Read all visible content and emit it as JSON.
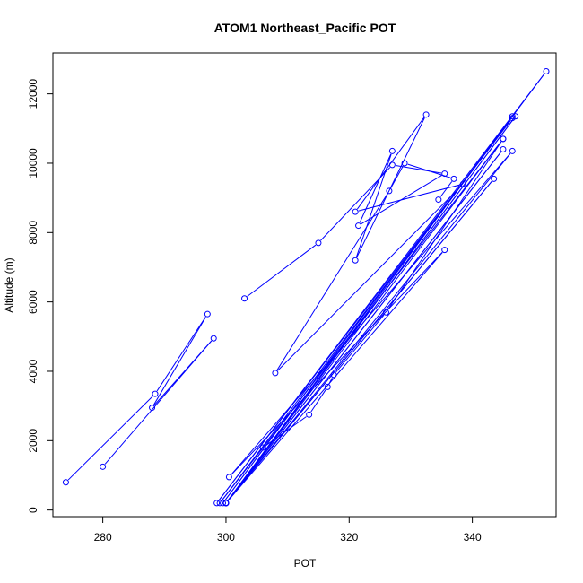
{
  "chart_data": {
    "type": "line",
    "title": "ATOM1 Northeast_Pacific POT",
    "xlabel": "POT",
    "ylabel": "Altitude (m)",
    "xlim": [
      271.9,
      353.6
    ],
    "ylim": [
      -190,
      13180
    ],
    "xticks": [
      280,
      300,
      320,
      340
    ],
    "yticks": [
      0,
      2000,
      4000,
      6000,
      8000,
      10000,
      12000
    ],
    "grid": false,
    "series_color": "#0000FF",
    "marker": "open-circle",
    "series": [
      {
        "points": [
          [
            274.0,
            800
          ],
          [
            288.5,
            3350
          ],
          [
            297.0,
            5650
          ],
          [
            288.0,
            2950
          ],
          [
            298.0,
            4950
          ],
          [
            280.0,
            1250
          ]
        ]
      },
      {
        "points": [
          [
            303.0,
            6100
          ],
          [
            315.0,
            7700
          ],
          [
            327.0,
            9950
          ],
          [
            335.5,
            9700
          ],
          [
            321.5,
            8200
          ],
          [
            327.0,
            10350
          ],
          [
            321.0,
            7200
          ],
          [
            332.5,
            11400
          ],
          [
            321.0,
            8600
          ],
          [
            338.5,
            9400
          ],
          [
            308.0,
            3950
          ],
          [
            326.5,
            9200
          ],
          [
            329.0,
            10000
          ],
          [
            337.0,
            9550
          ],
          [
            334.5,
            8950
          ]
        ]
      },
      {
        "points": [
          [
            300.0,
            200
          ],
          [
            343.5,
            9550
          ],
          [
            300.0,
            200
          ],
          [
            345.0,
            10700
          ],
          [
            299.0,
            200
          ],
          [
            346.5,
            11300
          ],
          [
            298.5,
            200
          ],
          [
            352.0,
            12650
          ],
          [
            299.5,
            200
          ],
          [
            346.5,
            11350
          ],
          [
            300.0,
            200
          ],
          [
            347.0,
            11350
          ],
          [
            300.0,
            200
          ],
          [
            345.0,
            10400
          ],
          [
            300.0,
            200
          ],
          [
            346.5,
            10350
          ],
          [
            300.5,
            950
          ],
          [
            335.5,
            7500
          ],
          [
            300.0,
            200
          ]
        ]
      },
      {
        "points": [
          [
            306.0,
            1800
          ],
          [
            313.5,
            2750
          ],
          [
            316.5,
            3550
          ],
          [
            317.5,
            3900
          ],
          [
            326.0,
            5700
          ],
          [
            345.0,
            10700
          ]
        ]
      }
    ]
  }
}
